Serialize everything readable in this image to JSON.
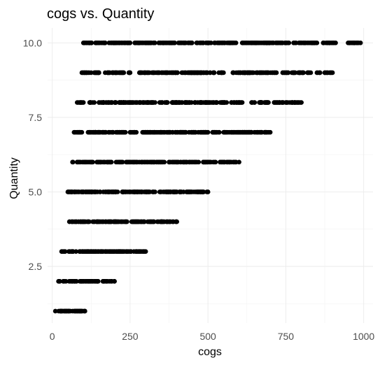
{
  "chart_data": {
    "type": "scatter",
    "title": "cogs vs. Quantity",
    "xlabel": "cogs",
    "ylabel": "Quantity",
    "xlim": [
      -15,
      1030
    ],
    "ylim": [
      0.6,
      10.5
    ],
    "grid": true,
    "theme": "minimal",
    "point_color": "#000000",
    "x_ticks": [
      0,
      250,
      500,
      750,
      1000
    ],
    "x_tick_labels": [
      "0",
      "250",
      "500",
      "750",
      "1000"
    ],
    "y_ticks": [
      2.5,
      5.0,
      7.5,
      10.0
    ],
    "y_tick_labels": [
      "2.5",
      "5.0",
      "7.5",
      "10.0"
    ],
    "groups": [
      {
        "quantity": 1,
        "cogs_min": 10,
        "cogs_max": 105,
        "segments": [
          [
            10,
            105
          ]
        ]
      },
      {
        "quantity": 2,
        "cogs_min": 20,
        "cogs_max": 200,
        "segments": [
          [
            20,
            200
          ]
        ]
      },
      {
        "quantity": 3,
        "cogs_min": 30,
        "cogs_max": 300,
        "segments": [
          [
            30,
            300
          ]
        ]
      },
      {
        "quantity": 4,
        "cogs_min": 55,
        "cogs_max": 400,
        "segments": [
          [
            55,
            240
          ],
          [
            255,
            400
          ]
        ]
      },
      {
        "quantity": 5,
        "cogs_min": 50,
        "cogs_max": 500,
        "segments": [
          [
            50,
            210
          ],
          [
            225,
            330
          ],
          [
            345,
            500
          ]
        ]
      },
      {
        "quantity": 6,
        "cogs_min": 65,
        "cogs_max": 600,
        "segments": [
          [
            65,
            190
          ],
          [
            205,
            360
          ],
          [
            375,
            470
          ],
          [
            485,
            600
          ]
        ]
      },
      {
        "quantity": 7,
        "cogs_min": 70,
        "cogs_max": 700,
        "segments": [
          [
            70,
            95
          ],
          [
            115,
            235
          ],
          [
            250,
            270
          ],
          [
            290,
            500
          ],
          [
            515,
            700
          ]
        ]
      },
      {
        "quantity": 8,
        "cogs_min": 80,
        "cogs_max": 800,
        "segments": [
          [
            80,
            100
          ],
          [
            120,
            135
          ],
          [
            150,
            330
          ],
          [
            345,
            370
          ],
          [
            385,
            560
          ],
          [
            575,
            610
          ],
          [
            640,
            650
          ],
          [
            665,
            800
          ]
        ]
      },
      {
        "quantity": 9,
        "cogs_min": 95,
        "cogs_max": 900,
        "segments": [
          [
            95,
            150
          ],
          [
            170,
            250
          ],
          [
            280,
            520
          ],
          [
            535,
            550
          ],
          [
            580,
            720
          ],
          [
            740,
            780
          ],
          [
            790,
            830
          ],
          [
            850,
            860
          ],
          [
            875,
            900
          ]
        ]
      },
      {
        "quantity": 10,
        "cogs_min": 100,
        "cogs_max": 990,
        "segments": [
          [
            100,
            250
          ],
          [
            265,
            590
          ],
          [
            610,
            760
          ],
          [
            775,
            850
          ],
          [
            870,
            910
          ],
          [
            950,
            990
          ]
        ]
      }
    ]
  }
}
